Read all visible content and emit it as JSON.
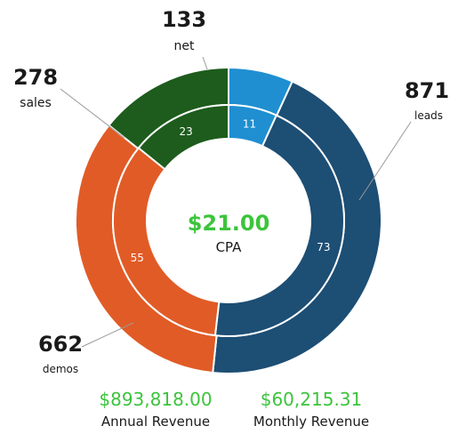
{
  "chart_data": {
    "type": "pie",
    "colors": {
      "leads": "#1d4e74",
      "net": "#1f8fd1",
      "sales": "#1d5c1c",
      "demos": "#e15b26",
      "accent": "#3cc43c"
    },
    "outer_ring": [
      {
        "key": "net",
        "value": 133,
        "label": "net"
      },
      {
        "key": "leads",
        "value": 871,
        "label": "leads"
      },
      {
        "key": "demos",
        "value": 662,
        "label": "demos"
      },
      {
        "key": "sales",
        "value": 278,
        "label": "sales"
      }
    ],
    "inner_ring": [
      {
        "key": "net",
        "value": 11
      },
      {
        "key": "leads",
        "value": 73
      },
      {
        "key": "demos",
        "value": 55
      },
      {
        "key": "sales",
        "value": 23
      }
    ],
    "center": {
      "value": "$21.00",
      "label": "CPA"
    }
  },
  "revenue": {
    "annual": {
      "value": "$893,818.00",
      "label": "Annual Revenue"
    },
    "monthly": {
      "value": "$60,215.31",
      "label": "Monthly Revenue"
    }
  }
}
